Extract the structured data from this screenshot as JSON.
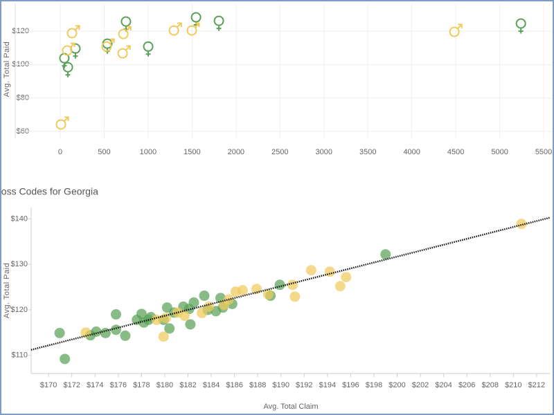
{
  "chart_data": [
    {
      "type": "scatter",
      "ylabel": "Avg. Total Paid",
      "xlim": [
        -512,
        5594
      ],
      "ylim": [
        55.8,
        136.6
      ],
      "xticks": [
        0,
        500,
        1000,
        1500,
        2000,
        2500,
        3000,
        3500,
        4000,
        4500,
        5000,
        5500
      ],
      "yticks": [
        {
          "value": 60,
          "label": "$60"
        },
        {
          "value": 80,
          "label": "$80"
        },
        {
          "value": 100,
          "label": "$100"
        },
        {
          "value": 120,
          "label": "$120"
        }
      ],
      "grid": true,
      "series": [
        {
          "color": "#5aa158",
          "marker": "female",
          "x": [
            47,
            87,
            173,
            536,
            748,
            1001,
            1545,
            1805,
            5241
          ],
          "values": [
            103.8,
            98.4,
            109.6,
            112.5,
            125.8,
            110.8,
            128.3,
            126.2,
            124.6
          ]
        },
        {
          "color": "#efcb5c",
          "marker": "male",
          "x": [
            8,
            79,
            134,
            528,
            710,
            718,
            1293,
            1497,
            4484
          ],
          "values": [
            64.1,
            108.4,
            118.8,
            110.8,
            106.7,
            118.3,
            120.4,
            120.4,
            119.6
          ]
        }
      ]
    },
    {
      "type": "scatter",
      "title": "Loss Codes for Georgia",
      "xlabel": "Avg. Total Claim",
      "ylabel": "Avg. Total Paid",
      "xlim": [
        168.5,
        213.2
      ],
      "ylim": [
        106,
        142.5
      ],
      "xticks": [
        {
          "value": 170,
          "label": "$170"
        },
        {
          "value": 172,
          "label": "$172"
        },
        {
          "value": 174,
          "label": "$174"
        },
        {
          "value": 176,
          "label": "$176"
        },
        {
          "value": 178,
          "label": "$178"
        },
        {
          "value": 180,
          "label": "$180"
        },
        {
          "value": 182,
          "label": "$182"
        },
        {
          "value": 184,
          "label": "$184"
        },
        {
          "value": 186,
          "label": "$186"
        },
        {
          "value": 188,
          "label": "$188"
        },
        {
          "value": 190,
          "label": "$190"
        },
        {
          "value": 192,
          "label": "$192"
        },
        {
          "value": 194,
          "label": "$194"
        },
        {
          "value": 196,
          "label": "$196"
        },
        {
          "value": 198,
          "label": "$198"
        },
        {
          "value": 200,
          "label": "$200"
        },
        {
          "value": 202,
          "label": "$202"
        },
        {
          "value": 204,
          "label": "$204"
        },
        {
          "value": 206,
          "label": "$206"
        },
        {
          "value": 208,
          "label": "$208"
        },
        {
          "value": 210,
          "label": "$210"
        },
        {
          "value": 212,
          "label": "$212"
        }
      ],
      "yticks": [
        {
          "value": 110,
          "label": "$110"
        },
        {
          "value": 120,
          "label": "$120"
        },
        {
          "value": 130,
          "label": "$130"
        },
        {
          "value": 140,
          "label": "$140"
        }
      ],
      "grid": false,
      "trendline": {
        "x": [
          168.5,
          213.2
        ],
        "y": [
          111.2,
          140.3
        ]
      },
      "series": [
        {
          "color": "#5aa158",
          "marker": "circle",
          "x": [
            170.95,
            171.4,
            173.6,
            174.1,
            174.9,
            175.8,
            175.8,
            176.6,
            177.6,
            178.0,
            178.2,
            178.6,
            178.8,
            179.9,
            180.2,
            180.4,
            180.8,
            181.6,
            182.1,
            182.2,
            182.5,
            183.4,
            183.7,
            184.4,
            184.8,
            185.0,
            185.8,
            189.1,
            189.9,
            199.0
          ],
          "values": [
            114.9,
            109.2,
            114.4,
            115.2,
            114.9,
            119.0,
            115.6,
            114.3,
            117.8,
            119.1,
            117.2,
            117.8,
            118.4,
            117.8,
            120.5,
            115.9,
            119.4,
            120.7,
            120.2,
            116.8,
            121.6,
            123.1,
            120.0,
            119.7,
            122.6,
            120.5,
            121.3,
            123.1,
            125.5,
            132.2
          ]
        },
        {
          "color": "#efcb5c",
          "marker": "circle",
          "x": [
            173.2,
            179.3,
            179.9,
            180.1,
            181.1,
            181.7,
            183.2,
            183.8,
            185.1,
            185.5,
            186.1,
            186.7,
            187.9,
            188.9,
            191.0,
            191.2,
            192.6,
            194.2,
            195.1,
            195.6,
            210.7
          ],
          "values": [
            115.0,
            117.8,
            114.1,
            118.2,
            119.4,
            118.7,
            119.3,
            120.7,
            121.1,
            122.3,
            124.0,
            124.3,
            124.6,
            123.4,
            125.5,
            122.9,
            128.7,
            128.4,
            125.2,
            127.2,
            138.9
          ]
        }
      ]
    }
  ]
}
